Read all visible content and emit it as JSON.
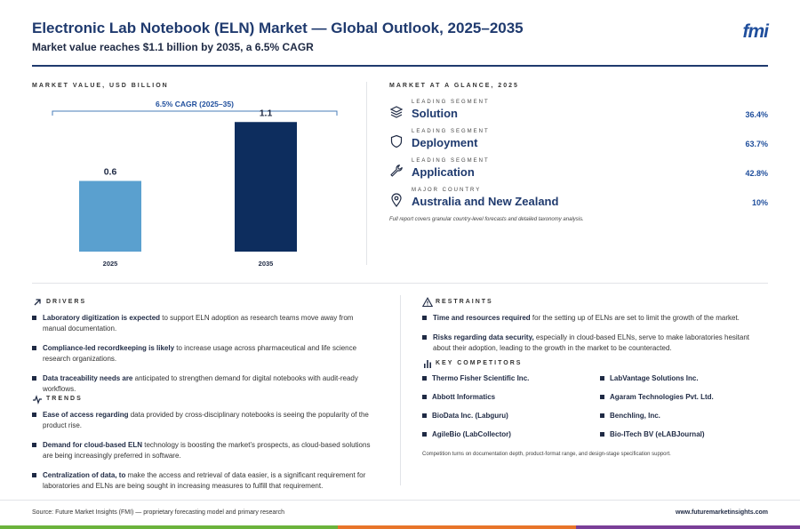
{
  "header": {
    "title": "Electronic Lab Notebook (ELN) Market — Global Outlook, 2025–2035",
    "subtitle": "Market value reaches $1.1 billion by 2035, a 6.5% CAGR",
    "logo": "fmi"
  },
  "chart_section": {
    "label": "MARKET VALUE, USD BILLION"
  },
  "chart_data": {
    "type": "bar",
    "categories": [
      "2025",
      "2035"
    ],
    "values": [
      0.6,
      1.1
    ],
    "value_labels": [
      "0.6",
      "1.1"
    ],
    "annotation": "6.5% CAGR (2025–35)",
    "ylim": [
      0,
      1.2
    ],
    "grid": false,
    "legend": "none",
    "colors": [
      "#5aa0cf",
      "#0d2d5e"
    ]
  },
  "glance": {
    "label": "MARKET AT A GLANCE, 2025",
    "rows": [
      {
        "small": "LEADING SEGMENT",
        "name": "Solution",
        "value": "36.4%",
        "icon": "layers-icon"
      },
      {
        "small": "LEADING SEGMENT",
        "name": "Deployment",
        "value": "63.7%",
        "icon": "shield-icon"
      },
      {
        "small": "LEADING SEGMENT",
        "name": "Application",
        "value": "42.8%",
        "icon": "wrench-icon"
      },
      {
        "small": "MAJOR COUNTRY",
        "name": "Australia and New Zealand",
        "value": "10%",
        "icon": "location-pin-icon"
      }
    ],
    "note": "Full report covers granular country-level forecasts and detailed taxonomy analysis."
  },
  "drivers": {
    "label": "DRIVERS",
    "items": [
      {
        "bold": "Laboratory digitization is expected",
        "text": " to support ELN adoption as research teams move away from manual documentation."
      },
      {
        "bold": "Compliance-led recordkeeping is likely",
        "text": " to increase usage across pharmaceutical and life science research organizations."
      },
      {
        "bold": "Data traceability needs are",
        "text": " anticipated to strengthen demand for digital notebooks with audit-ready workflows."
      }
    ]
  },
  "trends": {
    "label": "TRENDS",
    "items": [
      {
        "bold": "Ease of access regarding",
        "text": " data provided by cross-disciplinary notebooks is seeing the popularity of the product rise."
      },
      {
        "bold": "Demand for cloud-based ELN",
        "text": " technology is boosting the market’s prospects, as cloud-based solutions are being increasingly preferred in software."
      },
      {
        "bold": "Centralization of data, to",
        "text": " make the access and retrieval of data easier, is a significant requirement for laboratories and ELNs are being sought in increasing measures to fulfill that requirement."
      }
    ]
  },
  "restraints": {
    "label": "RESTRAINTS",
    "items": [
      {
        "bold": "Time and resources required",
        "text": " for the setting up of ELNs are set to limit the growth of the market."
      },
      {
        "bold": "Risks regarding data security,",
        "text": " especially in cloud-based ELNs, serve to make laboratories hesitant about their adoption, leading to the growth in the market to be counteracted."
      }
    ]
  },
  "competitors": {
    "label": "KEY COMPETITORS",
    "items": [
      "Thermo Fisher Scientific Inc.",
      "LabVantage Solutions Inc.",
      "Abbott Informatics",
      "Agaram Technologies Pvt. Ltd.",
      "BioData Inc. (Labguru)",
      "Benchling, Inc.",
      "AgileBio (LabCollector)",
      "Bio-ITech BV (eLABJournal)"
    ],
    "note": "Competition turns on documentation depth, product-format range, and design-stage specification support."
  },
  "footer": {
    "source": "Source: Future Market Insights (FMI) — proprietary forecasting model and primary research",
    "url": "www.futuremarketinsights.com"
  },
  "stripe_colors": [
    "#6bb33c",
    "#e8752a",
    "#7a3f98"
  ]
}
